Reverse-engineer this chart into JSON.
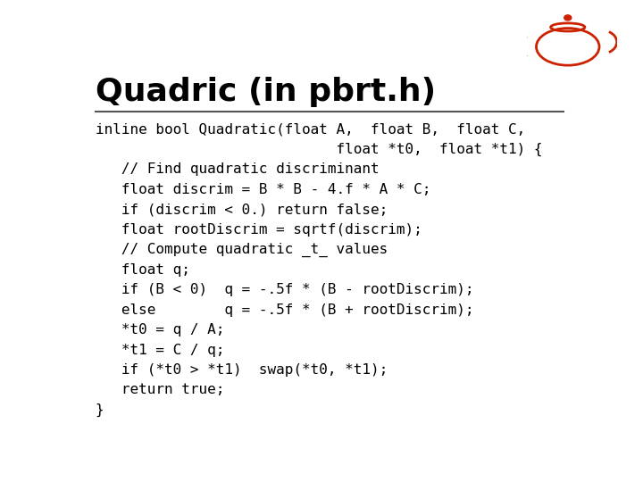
{
  "title": "Quadric (in pbrt.h)",
  "title_fontsize": 26,
  "title_fontweight": "bold",
  "title_color": "#000000",
  "background_color": "#ffffff",
  "separator_color": "#555555",
  "code_color": "#000000",
  "code_fontsize": 11.5,
  "code_lines": [
    "inline bool Quadratic(float A,  float B,  float C,",
    "                            float *t0,  float *t1) {",
    "   // Find quadratic discriminant",
    "   float discrim = B * B - 4.f * A * C;",
    "   if (discrim < 0.) return false;",
    "   float rootDiscrim = sqrtf(discrim);",
    "   // Compute quadratic _t_ values",
    "   float q;",
    "   if (B < 0)  q = -.5f * (B - rootDiscrim);",
    "   else        q = -.5f * (B + rootDiscrim);",
    "   *t0 = q / A;",
    "   *t1 = C / q;",
    "   if (*t0 > *t1)  swap(*t0, *t1);",
    "   return true;",
    "}"
  ]
}
